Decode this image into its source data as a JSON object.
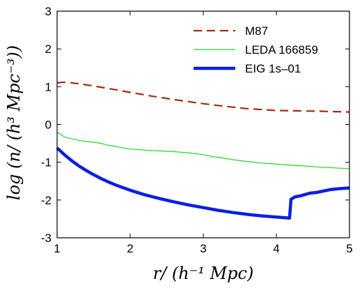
{
  "chart_data": {
    "type": "line",
    "title": "",
    "xlabel": "r/ (h⁻¹ Mpc)",
    "ylabel": "log (n/ (h³ Mpc⁻³))",
    "xlim": [
      1,
      5
    ],
    "ylim": [
      -3,
      3
    ],
    "xticks": [
      "1",
      "2",
      "3",
      "4",
      "5"
    ],
    "yticks": [
      "-3",
      "-2",
      "-1",
      "0",
      "1",
      "2",
      "3"
    ],
    "grid": false,
    "legend_position": "top-right",
    "series": [
      {
        "name": "M87",
        "color": "#a52a0f",
        "style": "dashed",
        "x": [
          1.0,
          1.1,
          1.3,
          1.5,
          1.8,
          2.0,
          2.3,
          2.6,
          3.0,
          3.3,
          3.6,
          4.0,
          4.3,
          4.6,
          5.0
        ],
        "y": [
          1.1,
          1.12,
          1.08,
          1.02,
          0.92,
          0.85,
          0.75,
          0.66,
          0.55,
          0.48,
          0.42,
          0.37,
          0.36,
          0.35,
          0.33
        ]
      },
      {
        "name": "LEDA 166859",
        "color": "#1ed81e",
        "style": "solid",
        "x": [
          1.0,
          1.1,
          1.2,
          1.3,
          1.4,
          1.5,
          1.6,
          1.7,
          1.8,
          1.9,
          2.0,
          2.2,
          2.4,
          2.6,
          2.8,
          3.0,
          3.2,
          3.4,
          3.6,
          3.8,
          4.0,
          4.2,
          4.4,
          4.6,
          4.8,
          5.0
        ],
        "y": [
          -0.2,
          -0.33,
          -0.38,
          -0.42,
          -0.45,
          -0.47,
          -0.5,
          -0.55,
          -0.58,
          -0.62,
          -0.65,
          -0.68,
          -0.7,
          -0.72,
          -0.75,
          -0.8,
          -0.87,
          -0.93,
          -0.98,
          -1.02,
          -1.05,
          -1.08,
          -1.1,
          -1.13,
          -1.15,
          -1.17
        ]
      },
      {
        "name": "EIG 1s–01",
        "color": "#0a1ee6",
        "style": "solid-thick",
        "x": [
          1.0,
          1.1,
          1.2,
          1.3,
          1.4,
          1.5,
          1.6,
          1.7,
          1.8,
          1.9,
          2.0,
          2.2,
          2.4,
          2.6,
          2.8,
          3.0,
          3.2,
          3.4,
          3.6,
          3.8,
          4.0,
          4.18,
          4.2,
          4.25,
          4.35,
          4.45,
          4.55,
          4.65,
          4.75,
          4.85,
          5.0
        ],
        "y": [
          -0.62,
          -0.8,
          -0.96,
          -1.1,
          -1.22,
          -1.33,
          -1.43,
          -1.52,
          -1.6,
          -1.67,
          -1.74,
          -1.86,
          -1.96,
          -2.05,
          -2.13,
          -2.2,
          -2.27,
          -2.33,
          -2.38,
          -2.42,
          -2.45,
          -2.48,
          -1.98,
          -1.92,
          -1.88,
          -1.82,
          -1.8,
          -1.76,
          -1.72,
          -1.7,
          -1.68
        ]
      }
    ]
  }
}
